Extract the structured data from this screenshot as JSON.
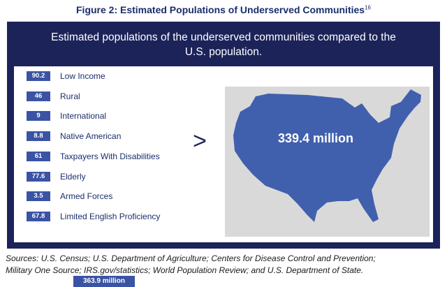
{
  "figure": {
    "title": "Figure 2:  Estimated Populations of Underserved Communities",
    "footnote": "16"
  },
  "header": {
    "line1": "Estimated populations of the underserved communities compared to the",
    "line2": "U.S. population."
  },
  "comparison_symbol": ">",
  "colors": {
    "navy": "#1c2359",
    "badge": "#3a53a4",
    "map": "#4060ad",
    "map_bg": "#d9d9d9"
  },
  "chart_data": {
    "type": "table",
    "categories": [
      "Low Income",
      "Rural",
      "International",
      "Native American",
      "Taxpayers With Disabilities",
      "Elderly",
      "Armed Forces",
      "Limited English Proficiency"
    ],
    "values": [
      90.2,
      46,
      9,
      8.8,
      61,
      77.6,
      3.5,
      67.8
    ],
    "value_labels": [
      "90.2",
      "46",
      "9",
      "8.8",
      "61",
      "77.6",
      "3.5",
      "67.8"
    ],
    "total_label": "363.9 million",
    "us_population_label": "339.4 million"
  },
  "sources": {
    "line1": "Sources:  U.S. Census; U.S. Department of Agriculture; Centers for Disease Control and Prevention;",
    "line2": "Military One Source; IRS.gov/statistics; World Population Review; and U.S. Department of State."
  }
}
